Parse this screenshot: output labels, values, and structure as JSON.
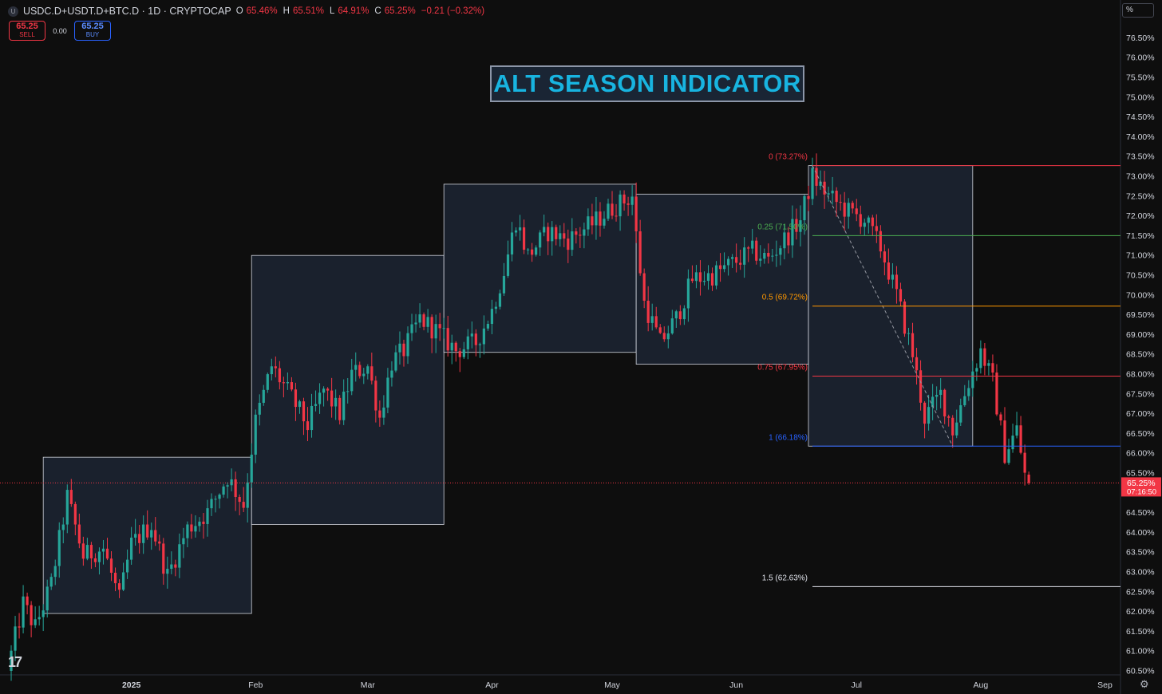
{
  "header": {
    "symbol_badge": "U",
    "symbol": "USDC.D+USDT.D+BTC.D · 1D · CRYPTOCAP",
    "ohlc": [
      {
        "k": "O",
        "v": "65.46%"
      },
      {
        "k": "H",
        "v": "65.51%"
      },
      {
        "k": "L",
        "v": "64.91%"
      },
      {
        "k": "C",
        "v": "65.25%"
      }
    ],
    "change": "−0.21 (−0.32%)"
  },
  "trade": {
    "sell_price": "65.25",
    "sell_label": "SELL",
    "spread": "0.00",
    "buy_price": "65.25",
    "buy_label": "BUY"
  },
  "unit_label": "%",
  "logo_text": "17",
  "settings_icon": "gear-icon",
  "colors": {
    "background": "#0e0e0e",
    "up": "#26a69a",
    "down": "#f23645",
    "box_fill": "#1d2636",
    "box_stroke": "#d1d4dc",
    "title_text": "#18b4e0"
  },
  "chart_data": {
    "type": "candlestick",
    "title": "ALT SEASON INDICATOR",
    "y_axis": {
      "min": 60.25,
      "max": 76.75,
      "ticks": [
        "76.50%",
        "76.00%",
        "75.50%",
        "75.00%",
        "74.50%",
        "74.00%",
        "73.50%",
        "73.00%",
        "72.50%",
        "72.00%",
        "71.50%",
        "71.00%",
        "70.50%",
        "70.00%",
        "69.50%",
        "69.00%",
        "68.50%",
        "68.00%",
        "67.50%",
        "67.00%",
        "66.50%",
        "66.00%",
        "65.50%",
        "65.00%",
        "64.50%",
        "64.00%",
        "63.50%",
        "63.00%",
        "62.50%",
        "62.00%",
        "61.50%",
        "61.00%",
        "60.50%"
      ]
    },
    "x_axis": {
      "range": [
        "2024-12-01",
        "2025-09-15"
      ],
      "ticks": [
        {
          "date": "2025-01-01",
          "label": "2025"
        },
        {
          "date": "2025-02-01",
          "label": "Feb"
        },
        {
          "date": "2025-03-01",
          "label": "Mar"
        },
        {
          "date": "2025-04-01",
          "label": "Apr"
        },
        {
          "date": "2025-05-01",
          "label": "May"
        },
        {
          "date": "2025-06-01",
          "label": "Jun"
        },
        {
          "date": "2025-07-01",
          "label": "Jul"
        },
        {
          "date": "2025-08-01",
          "label": "Aug"
        },
        {
          "date": "2025-09-01",
          "label": "Sep"
        }
      ]
    },
    "current_price": {
      "value": 65.25,
      "label": "65.25%",
      "countdown": "07:16:50"
    },
    "waypoints": [
      [
        "2024-12-01",
        60.5
      ],
      [
        "2024-12-05",
        62.2
      ],
      [
        "2024-12-08",
        61.6
      ],
      [
        "2024-12-12",
        62.7
      ],
      [
        "2024-12-14",
        63.8
      ],
      [
        "2024-12-16",
        64.9
      ],
      [
        "2024-12-20",
        63.4
      ],
      [
        "2024-12-25",
        63.6
      ],
      [
        "2024-12-29",
        62.3
      ],
      [
        "2025-01-01",
        63.7
      ],
      [
        "2025-01-06",
        64.2
      ],
      [
        "2025-01-10",
        62.9
      ],
      [
        "2025-01-15",
        64.1
      ],
      [
        "2025-01-20",
        64.5
      ],
      [
        "2025-01-25",
        65.4
      ],
      [
        "2025-01-29",
        64.7
      ],
      [
        "2025-02-01",
        66.8
      ],
      [
        "2025-02-05",
        68.2
      ],
      [
        "2025-02-10",
        67.4
      ],
      [
        "2025-02-14",
        66.7
      ],
      [
        "2025-02-18",
        67.6
      ],
      [
        "2025-02-22",
        67.0
      ],
      [
        "2025-02-25",
        68.0
      ],
      [
        "2025-03-01",
        68.2
      ],
      [
        "2025-03-04",
        66.9
      ],
      [
        "2025-03-07",
        68.3
      ],
      [
        "2025-03-10",
        68.6
      ],
      [
        "2025-03-14",
        69.4
      ],
      [
        "2025-03-18",
        69.1
      ],
      [
        "2025-03-23",
        68.6
      ],
      [
        "2025-03-28",
        68.8
      ],
      [
        "2025-04-01",
        69.6
      ],
      [
        "2025-04-04",
        70.6
      ],
      [
        "2025-04-07",
        71.9
      ],
      [
        "2025-04-10",
        71.0
      ],
      [
        "2025-04-15",
        71.6
      ],
      [
        "2025-04-20",
        71.4
      ],
      [
        "2025-04-26",
        71.8
      ],
      [
        "2025-05-01",
        72.2
      ],
      [
        "2025-05-06",
        72.5
      ],
      [
        "2025-05-07",
        71.5
      ],
      [
        "2025-05-09",
        69.8
      ],
      [
        "2025-05-13",
        68.8
      ],
      [
        "2025-05-17",
        69.4
      ],
      [
        "2025-05-21",
        70.4
      ],
      [
        "2025-05-26",
        70.5
      ],
      [
        "2025-05-31",
        70.8
      ],
      [
        "2025-06-05",
        71.1
      ],
      [
        "2025-06-09",
        70.9
      ],
      [
        "2025-06-13",
        71.4
      ],
      [
        "2025-06-17",
        71.9
      ],
      [
        "2025-06-20",
        73.0
      ],
      [
        "2025-06-24",
        72.5
      ],
      [
        "2025-06-29",
        72.1
      ],
      [
        "2025-07-03",
        71.9
      ],
      [
        "2025-07-07",
        71.2
      ],
      [
        "2025-07-11",
        70.0
      ],
      [
        "2025-07-15",
        68.5
      ],
      [
        "2025-07-18",
        66.9
      ],
      [
        "2025-07-22",
        67.5
      ],
      [
        "2025-07-25",
        66.6
      ],
      [
        "2025-07-29",
        67.8
      ],
      [
        "2025-08-01",
        68.6
      ],
      [
        "2025-08-04",
        67.8
      ],
      [
        "2025-08-07",
        66.0
      ],
      [
        "2025-08-10",
        66.6
      ],
      [
        "2025-08-12",
        65.46
      ],
      [
        "2025-08-13",
        65.25
      ]
    ],
    "boxes": [
      {
        "start": "2024-12-10",
        "end": "2025-01-31",
        "low": 61.95,
        "high": 65.9
      },
      {
        "start": "2025-01-31",
        "end": "2025-03-20",
        "low": 64.2,
        "high": 71.0
      },
      {
        "start": "2025-03-20",
        "end": "2025-05-07",
        "low": 68.55,
        "high": 72.8
      },
      {
        "start": "2025-05-07",
        "end": "2025-06-19",
        "low": 68.25,
        "high": 72.55
      },
      {
        "start": "2025-06-19",
        "end": "2025-07-30",
        "low": 66.18,
        "high": 73.27
      }
    ],
    "fibonacci": {
      "start": "2025-06-20",
      "end": "2025-09-30",
      "trend_from": {
        "date": "2025-06-20",
        "value": 73.27
      },
      "trend_to": {
        "date": "2025-07-25",
        "value": 66.18
      },
      "levels": [
        {
          "label": "0 (73.27%)",
          "value": 73.27,
          "color": "#f23645"
        },
        {
          "label": "0.25 (71.50%)",
          "value": 71.5,
          "color": "#4caf50"
        },
        {
          "label": "0.5 (69.72%)",
          "value": 69.72,
          "color": "#ff9800"
        },
        {
          "label": "0.75 (67.95%)",
          "value": 67.95,
          "color": "#f23645"
        },
        {
          "label": "1 (66.18%)",
          "value": 66.18,
          "color": "#2962ff"
        },
        {
          "label": "1.5 (62.63%)",
          "value": 62.63,
          "color": "#e0e3eb"
        }
      ]
    }
  }
}
